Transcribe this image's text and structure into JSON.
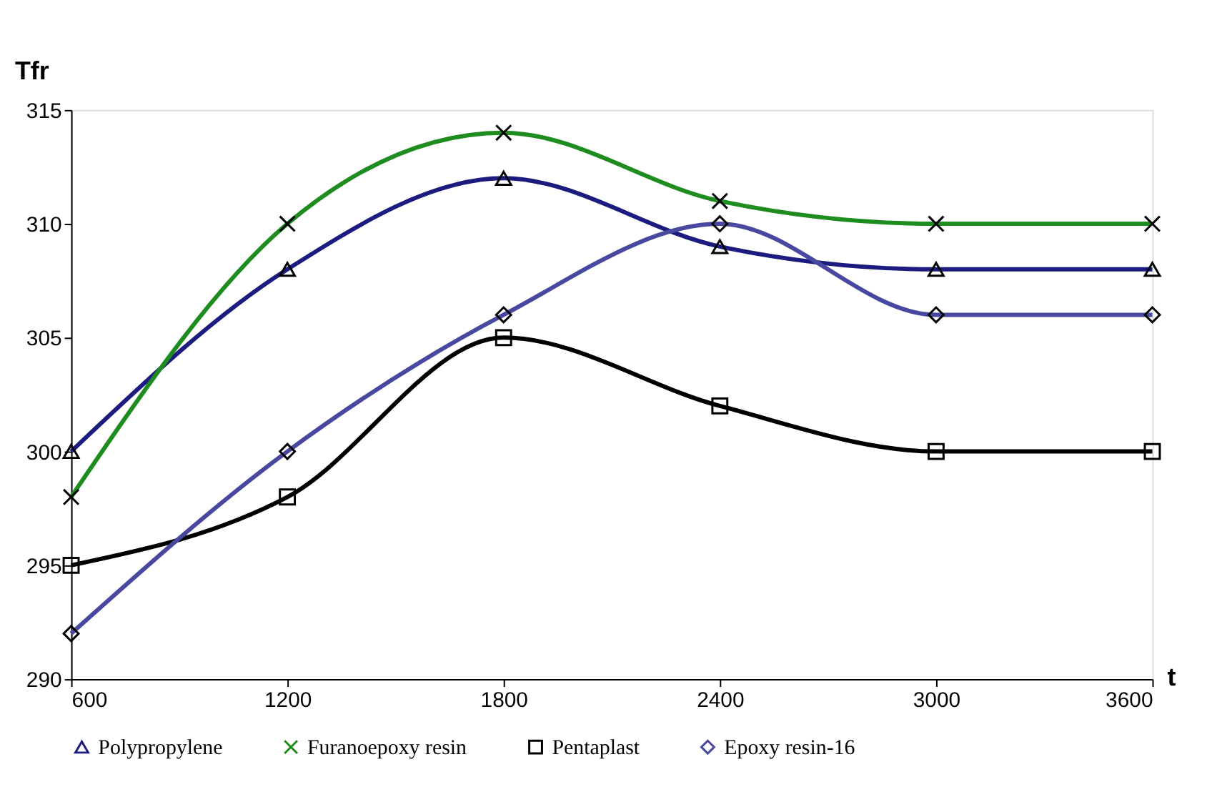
{
  "chart_data": {
    "type": "line",
    "ylabel": "Tfr",
    "xlabel": "t",
    "x": [
      600,
      1200,
      1800,
      2400,
      3000,
      3600
    ],
    "xlim": [
      600,
      3600
    ],
    "xticks": [
      600,
      1200,
      1800,
      2400,
      3000,
      3600
    ],
    "ylim": [
      290,
      315
    ],
    "yticks": [
      290,
      295,
      300,
      305,
      310,
      315
    ],
    "grid": false,
    "legend": "bottom",
    "line_style": "solid",
    "series": [
      {
        "name": "Polypropylene",
        "color": "#1c1c80",
        "marker": "triangle",
        "values": [
          300,
          308,
          312,
          309,
          308,
          308
        ]
      },
      {
        "name": "Furanoepoxy resin",
        "color": "#1e8c1e",
        "marker": "cross",
        "values": [
          298,
          310,
          314,
          311,
          310,
          310
        ]
      },
      {
        "name": "Pentaplast",
        "color": "#000000",
        "marker": "square",
        "values": [
          295,
          298,
          305,
          302,
          300,
          300
        ]
      },
      {
        "name": "Epoxy resin-16",
        "color": "#4848a0",
        "marker": "diamond",
        "values": [
          292,
          300,
          306,
          310,
          306,
          306
        ]
      }
    ]
  }
}
